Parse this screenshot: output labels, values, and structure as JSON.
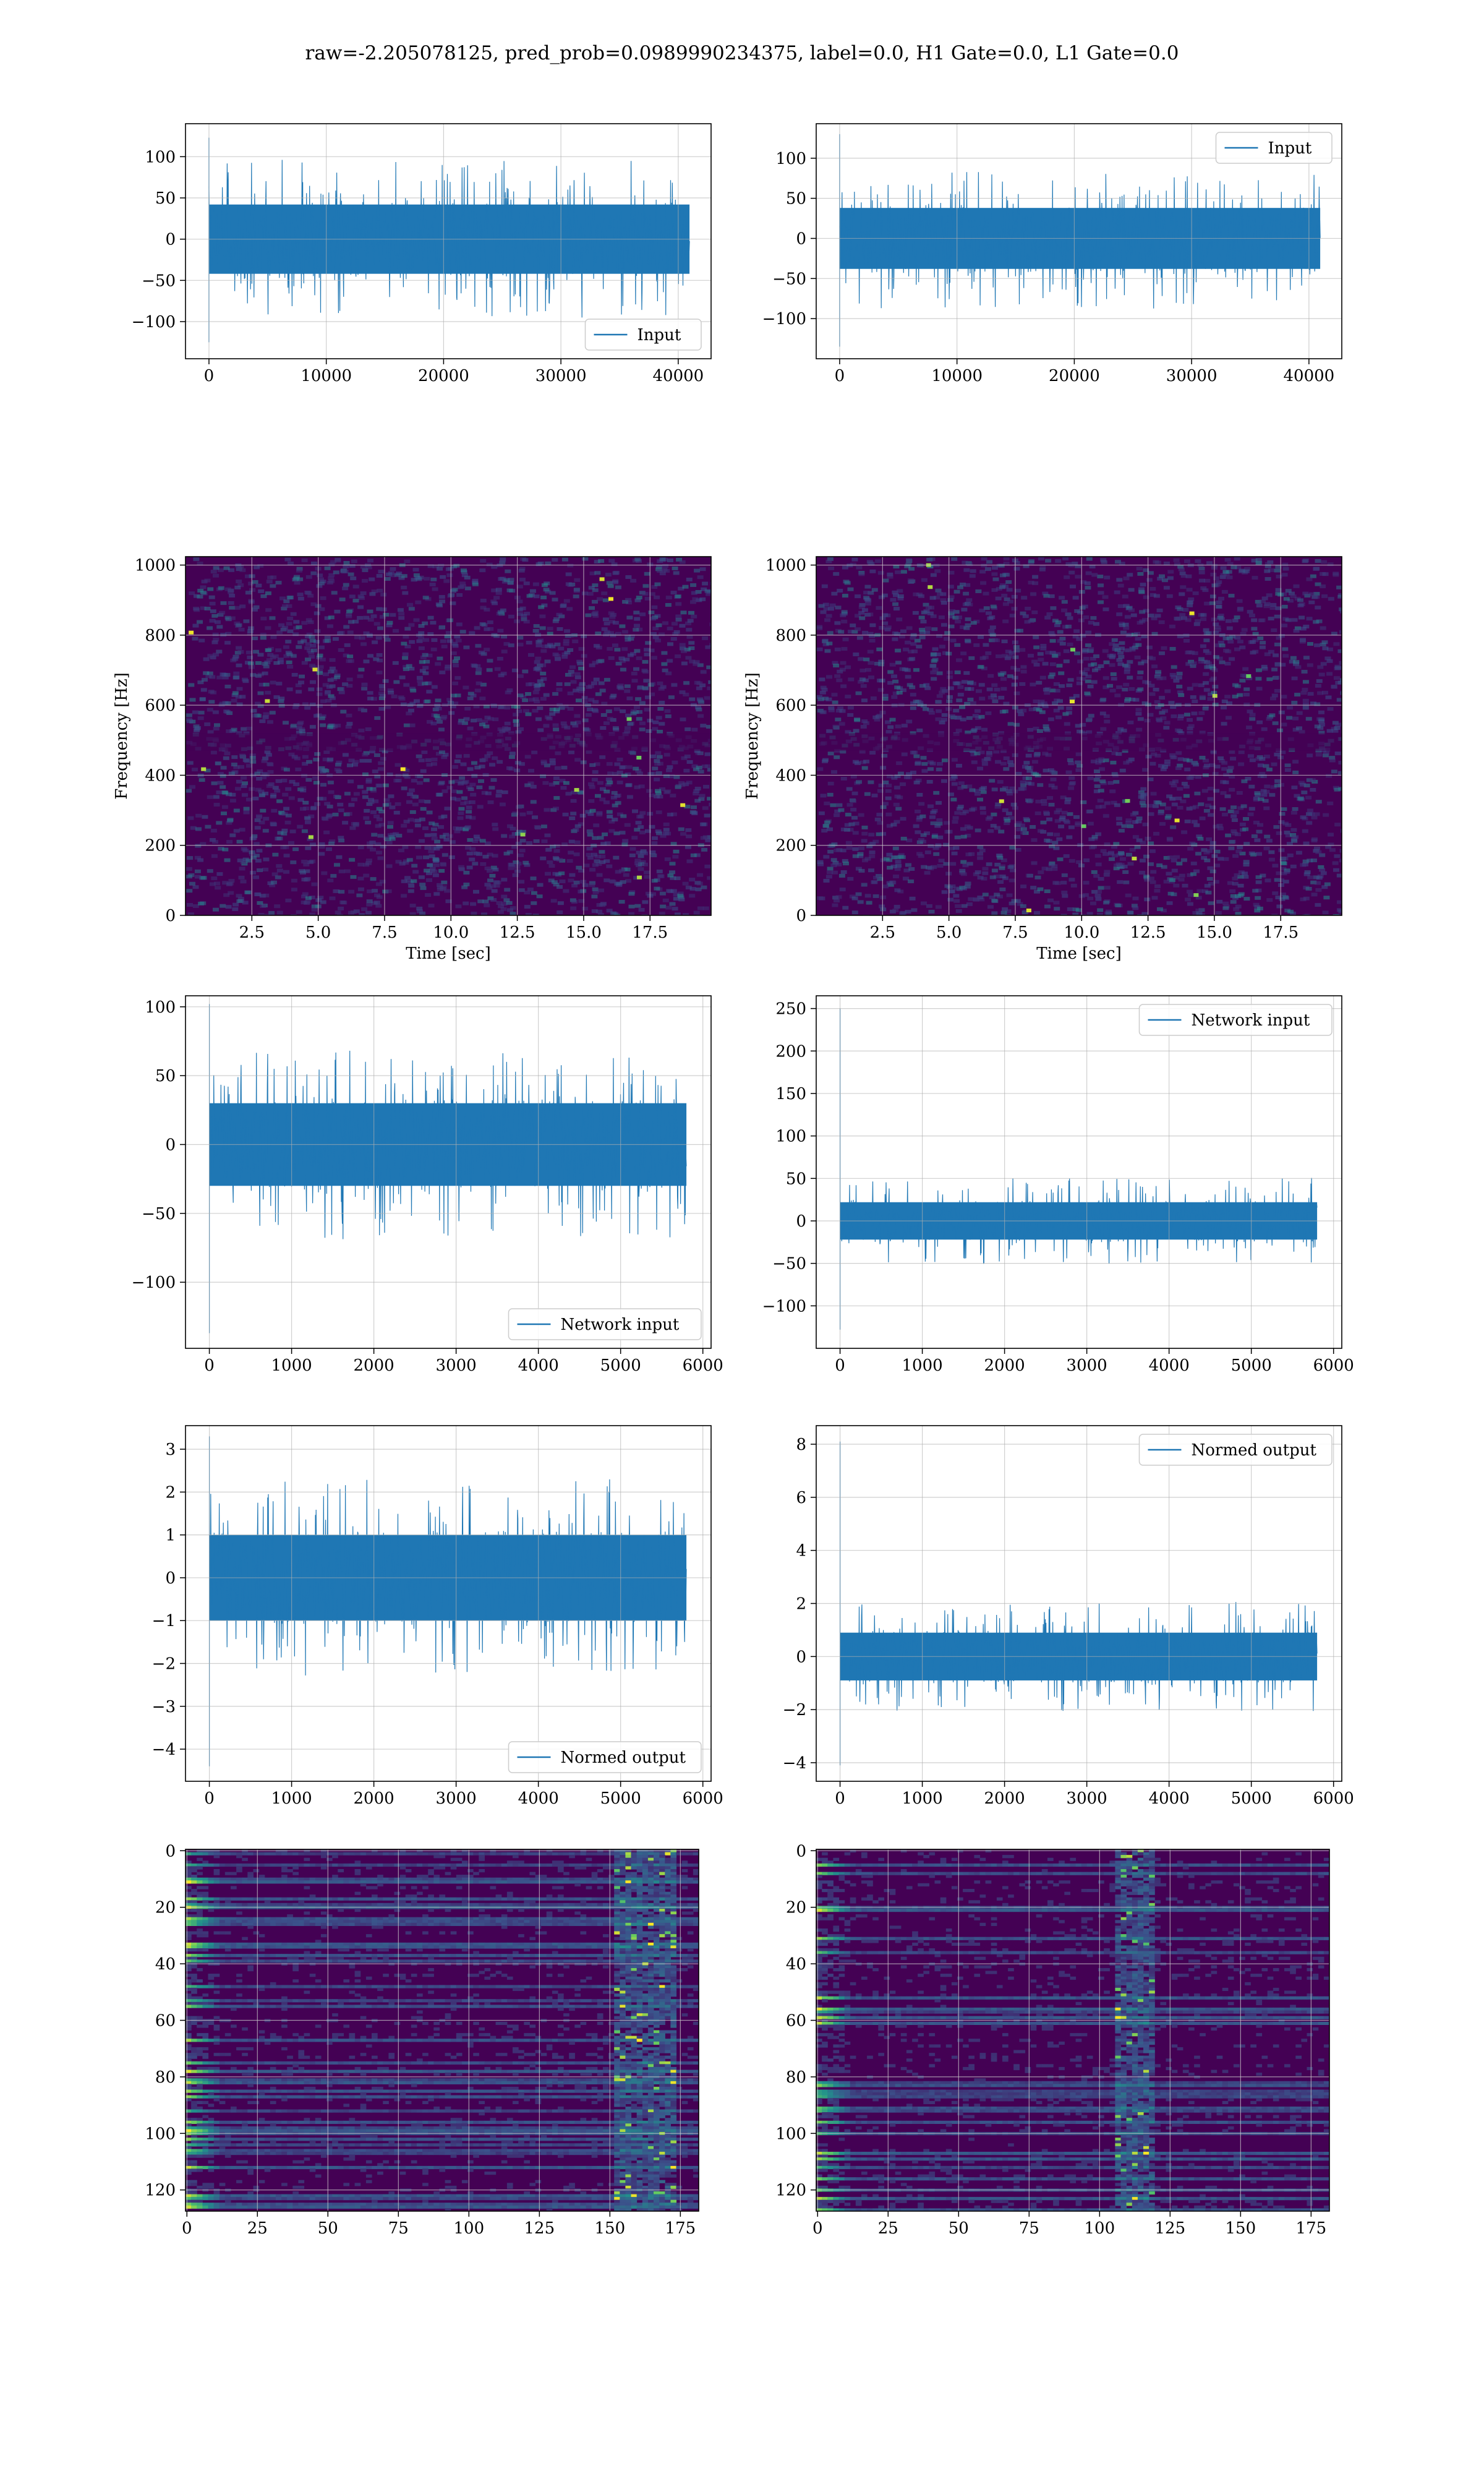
{
  "suptitle": "raw=-2.205078125, pred_prob=0.0989990234375, label=0.0, H1 Gate=0.0, L1 Gate=0.0",
  "colors": {
    "line": "#1f77b4",
    "grid": "#b0b0b0",
    "viridis_low": "#440154",
    "viridis_mid": "#21918c",
    "viridis_high": "#fde725"
  },
  "chart_data": [
    {
      "id": "p1",
      "type": "line",
      "title": "",
      "xlabel": "",
      "ylabel": "",
      "series": [
        {
          "name": "Input",
          "n": 40960,
          "mean": 0,
          "band": 42,
          "peak_max": 123,
          "peak_min": -125
        }
      ],
      "xlim": [
        -2000,
        42800
      ],
      "ylim": [
        -145,
        140
      ],
      "xticks": [
        0,
        10000,
        20000,
        30000,
        40000
      ],
      "xtick_labels": [
        "0",
        "10000",
        "20000",
        "30000",
        "40000"
      ],
      "yticks": [
        -100,
        -50,
        0,
        50,
        100
      ],
      "ytick_labels": [
        "−100",
        "−50",
        "0",
        "50",
        "100"
      ],
      "legend": {
        "label": "Input",
        "position": "lower-right"
      },
      "grid": true
    },
    {
      "id": "p2",
      "type": "line",
      "title": "",
      "xlabel": "",
      "ylabel": "",
      "series": [
        {
          "name": "Input",
          "n": 40960,
          "mean": 0,
          "band": 38,
          "peak_max": 130,
          "peak_min": -135
        }
      ],
      "xlim": [
        -2000,
        42800
      ],
      "ylim": [
        -150,
        143
      ],
      "xticks": [
        0,
        10000,
        20000,
        30000,
        40000
      ],
      "xtick_labels": [
        "0",
        "10000",
        "20000",
        "30000",
        "40000"
      ],
      "yticks": [
        -100,
        -50,
        0,
        50,
        100
      ],
      "ytick_labels": [
        "−100",
        "−50",
        "0",
        "50",
        "100"
      ],
      "legend": {
        "label": "Input",
        "position": "upper-right"
      },
      "grid": true
    },
    {
      "id": "p3",
      "type": "heatmap",
      "title": "",
      "xlabel": "Time [sec]",
      "ylabel": "Frequency [Hz]",
      "xlim": [
        0,
        19.8
      ],
      "ylim": [
        0,
        1024
      ],
      "xticks": [
        2.5,
        5.0,
        7.5,
        10.0,
        12.5,
        15.0,
        17.5
      ],
      "xtick_labels": [
        "2.5",
        "5.0",
        "7.5",
        "10.0",
        "12.5",
        "15.0",
        "17.5"
      ],
      "yticks": [
        0,
        200,
        400,
        600,
        800,
        1000
      ],
      "ytick_labels": [
        "0",
        "200",
        "400",
        "600",
        "800",
        "1000"
      ],
      "colormap": "viridis",
      "grid": true
    },
    {
      "id": "p4",
      "type": "heatmap",
      "title": "",
      "xlabel": "Time [sec]",
      "ylabel": "Frequency [Hz]",
      "xlim": [
        0,
        19.8
      ],
      "ylim": [
        0,
        1024
      ],
      "xticks": [
        2.5,
        5.0,
        7.5,
        10.0,
        12.5,
        15.0,
        17.5
      ],
      "xtick_labels": [
        "2.5",
        "5.0",
        "7.5",
        "10.0",
        "12.5",
        "15.0",
        "17.5"
      ],
      "yticks": [
        0,
        200,
        400,
        600,
        800,
        1000
      ],
      "ytick_labels": [
        "0",
        "200",
        "400",
        "600",
        "800",
        "1000"
      ],
      "colormap": "viridis",
      "grid": true
    },
    {
      "id": "p5",
      "type": "line",
      "title": "",
      "xlabel": "",
      "ylabel": "",
      "series": [
        {
          "name": "Network input",
          "n": 5800,
          "mean": 0,
          "band": 30,
          "peak_max": 102,
          "peak_min": -137
        }
      ],
      "xlim": [
        -290,
        6100
      ],
      "ylim": [
        -148,
        108
      ],
      "xticks": [
        0,
        1000,
        2000,
        3000,
        4000,
        5000,
        6000
      ],
      "xtick_labels": [
        "0",
        "1000",
        "2000",
        "3000",
        "4000",
        "5000",
        "6000"
      ],
      "yticks": [
        -100,
        -50,
        0,
        50,
        100
      ],
      "ytick_labels": [
        "−100",
        "−50",
        "0",
        "50",
        "100"
      ],
      "legend": {
        "label": "Network input",
        "position": "lower-right"
      },
      "grid": true
    },
    {
      "id": "p6",
      "type": "line",
      "title": "",
      "xlabel": "",
      "ylabel": "",
      "series": [
        {
          "name": "Network input",
          "n": 5800,
          "mean": 0,
          "band": 22,
          "peak_max": 250,
          "peak_min": -128
        }
      ],
      "xlim": [
        -290,
        6100
      ],
      "ylim": [
        -150,
        265
      ],
      "xticks": [
        0,
        1000,
        2000,
        3000,
        4000,
        5000,
        6000
      ],
      "xtick_labels": [
        "0",
        "1000",
        "2000",
        "3000",
        "4000",
        "5000",
        "6000"
      ],
      "yticks": [
        -100,
        -50,
        0,
        50,
        100,
        150,
        200,
        250
      ],
      "ytick_labels": [
        "−100",
        "−50",
        "0",
        "50",
        "100",
        "150",
        "200",
        "250"
      ],
      "legend": {
        "label": "Network input",
        "position": "upper-right"
      },
      "grid": true
    },
    {
      "id": "p7",
      "type": "line",
      "title": "",
      "xlabel": "",
      "ylabel": "",
      "series": [
        {
          "name": "Normed output",
          "n": 5800,
          "mean": 0,
          "band": 1.0,
          "peak_max": 3.3,
          "peak_min": -4.4
        }
      ],
      "xlim": [
        -290,
        6100
      ],
      "ylim": [
        -4.75,
        3.55
      ],
      "xticks": [
        0,
        1000,
        2000,
        3000,
        4000,
        5000,
        6000
      ],
      "xtick_labels": [
        "0",
        "1000",
        "2000",
        "3000",
        "4000",
        "5000",
        "6000"
      ],
      "yticks": [
        -4,
        -3,
        -2,
        -1,
        0,
        1,
        2,
        3
      ],
      "ytick_labels": [
        "−4",
        "−3",
        "−2",
        "−1",
        "0",
        "1",
        "2",
        "3"
      ],
      "legend": {
        "label": "Normed output",
        "position": "lower-right"
      },
      "grid": true
    },
    {
      "id": "p8",
      "type": "line",
      "title": "",
      "xlabel": "",
      "ylabel": "",
      "series": [
        {
          "name": "Normed output",
          "n": 5800,
          "mean": 0,
          "band": 0.9,
          "peak_max": 8.1,
          "peak_min": -4.1
        }
      ],
      "xlim": [
        -290,
        6100
      ],
      "ylim": [
        -4.7,
        8.7
      ],
      "xticks": [
        0,
        1000,
        2000,
        3000,
        4000,
        5000,
        6000
      ],
      "xtick_labels": [
        "0",
        "1000",
        "2000",
        "3000",
        "4000",
        "5000",
        "6000"
      ],
      "yticks": [
        -4,
        -2,
        0,
        2,
        4,
        6,
        8
      ],
      "ytick_labels": [
        "−4",
        "−2",
        "0",
        "2",
        "4",
        "6",
        "8"
      ],
      "legend": {
        "label": "Normed output",
        "position": "upper-right"
      },
      "grid": true
    },
    {
      "id": "p9",
      "type": "heatmap",
      "title": "",
      "xlabel": "",
      "ylabel": "",
      "rows": 128,
      "cols": 182,
      "xlim": [
        -0.5,
        181.5
      ],
      "ylim": [
        127.5,
        -0.5
      ],
      "xticks": [
        0,
        25,
        50,
        75,
        100,
        125,
        150,
        175
      ],
      "xtick_labels": [
        "0",
        "25",
        "50",
        "75",
        "100",
        "125",
        "150",
        "175"
      ],
      "yticks": [
        0,
        20,
        40,
        60,
        80,
        100,
        120
      ],
      "ytick_labels": [
        "0",
        "20",
        "40",
        "60",
        "80",
        "100",
        "120"
      ],
      "bright_band_cols": [
        152,
        172
      ],
      "colormap": "viridis",
      "grid": true
    },
    {
      "id": "p10",
      "type": "heatmap",
      "title": "",
      "xlabel": "",
      "ylabel": "",
      "rows": 128,
      "cols": 182,
      "xlim": [
        -0.5,
        181.5
      ],
      "ylim": [
        127.5,
        -0.5
      ],
      "xticks": [
        0,
        25,
        50,
        75,
        100,
        125,
        150,
        175
      ],
      "xtick_labels": [
        "0",
        "25",
        "50",
        "75",
        "100",
        "125",
        "150",
        "175"
      ],
      "yticks": [
        0,
        20,
        40,
        60,
        80,
        100,
        120
      ],
      "ytick_labels": [
        "0",
        "20",
        "40",
        "60",
        "80",
        "100",
        "120"
      ],
      "bright_band_cols": [
        105,
        118
      ],
      "colormap": "viridis",
      "grid": true
    }
  ]
}
